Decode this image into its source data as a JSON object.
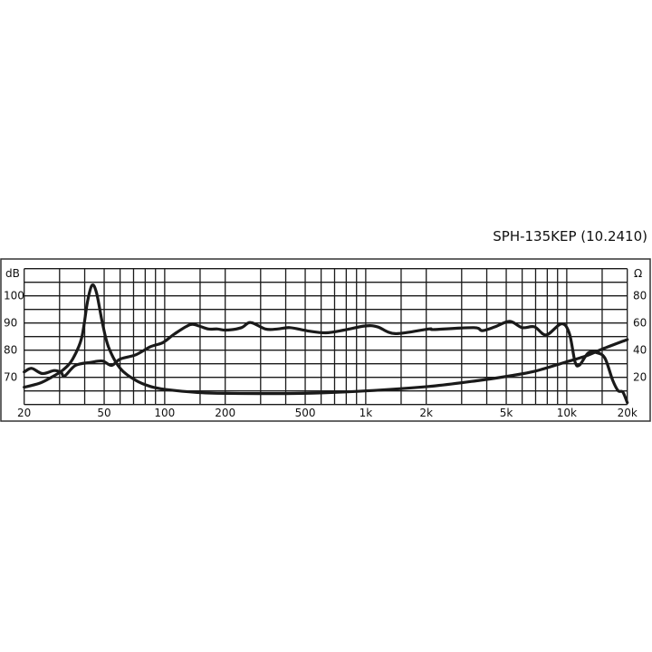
{
  "chart_data": {
    "type": "line",
    "title": "SPH-135KEP (10.2410)",
    "x_scale": "log",
    "xlim": [
      20,
      20000
    ],
    "x_tick_labels": [
      "20",
      "50",
      "100",
      "200",
      "500",
      "1k",
      "2k",
      "5k",
      "10k",
      "20k"
    ],
    "x_tick_values": [
      20,
      50,
      100,
      200,
      500,
      1000,
      2000,
      5000,
      10000,
      20000
    ],
    "x_grid_values": [
      20,
      30,
      40,
      50,
      60,
      70,
      80,
      90,
      100,
      150,
      200,
      300,
      400,
      500,
      600,
      700,
      800,
      900,
      1000,
      1500,
      2000,
      3000,
      4000,
      5000,
      6000,
      7000,
      8000,
      9000,
      10000,
      15000,
      20000
    ],
    "y_left": {
      "label": "dB",
      "lim": [
        60,
        110
      ],
      "tick_labels": [
        "100",
        "90",
        "80",
        "70"
      ],
      "tick_values": [
        100,
        90,
        80,
        70
      ],
      "grid_step": 5
    },
    "y_right": {
      "label": "Ω",
      "lim": [
        0,
        100
      ],
      "tick_labels": [
        "80",
        "60",
        "40",
        "20"
      ],
      "tick_values": [
        80,
        60,
        40,
        20
      ]
    },
    "grid": true,
    "colors": {
      "curve": "#1a1a1a",
      "grid": "#1a1a1a",
      "frame": "#333333"
    },
    "series": [
      {
        "axis": "left",
        "x": [
          20,
          21.8,
          24.6,
          28.2,
          30.5,
          31.8,
          36,
          42.8,
          49,
          54.5,
          60,
          71.8,
          85,
          98,
          112,
          134,
          148,
          165,
          183,
          203,
          241,
          267,
          317,
          364,
          419,
          514,
          632,
          780,
          990,
          1143,
          1400,
          2050,
          2200,
          3450,
          3800,
          4400,
          5200,
          6000,
          6900,
          7900,
          9400,
          10300,
          11000,
          11600,
          12800,
          14200,
          15500,
          16900,
          18000,
          19000,
          20000
        ],
        "y": [
          72,
          73.3,
          71.4,
          72.5,
          71.8,
          70.5,
          74.4,
          75.5,
          76,
          74.4,
          76.7,
          78.3,
          81.3,
          82.8,
          86,
          89.4,
          88.9,
          87.8,
          87.8,
          87.4,
          88.3,
          90.2,
          87.8,
          87.8,
          88.3,
          87.1,
          86.4,
          87.4,
          88.9,
          88.6,
          86.1,
          87.8,
          87.6,
          88.3,
          87.2,
          88.6,
          90.6,
          88.3,
          88.6,
          85.6,
          89.7,
          86.2,
          75.6,
          74.6,
          79,
          79,
          77,
          69,
          65.1,
          64.6,
          60.7
        ]
      },
      {
        "axis": "right",
        "x": [
          20,
          23.8,
          27.3,
          31.3,
          34.8,
          38.6,
          41.3,
          43.5,
          45.8,
          49,
          52.6,
          60,
          71.8,
          85,
          101,
          143,
          203,
          480,
          990,
          2050,
          3700,
          5200,
          6900,
          9800,
          12400,
          15200,
          20000
        ],
        "y": [
          12.7,
          15.6,
          20,
          25.6,
          33.3,
          48.9,
          75.6,
          87.8,
          82.2,
          60,
          42.2,
          26.7,
          17.8,
          13.3,
          11.1,
          8.9,
          8.2,
          8.2,
          10,
          13.3,
          17.8,
          21.1,
          24.4,
          31.1,
          35.6,
          41.1,
          47.8
        ]
      }
    ]
  }
}
